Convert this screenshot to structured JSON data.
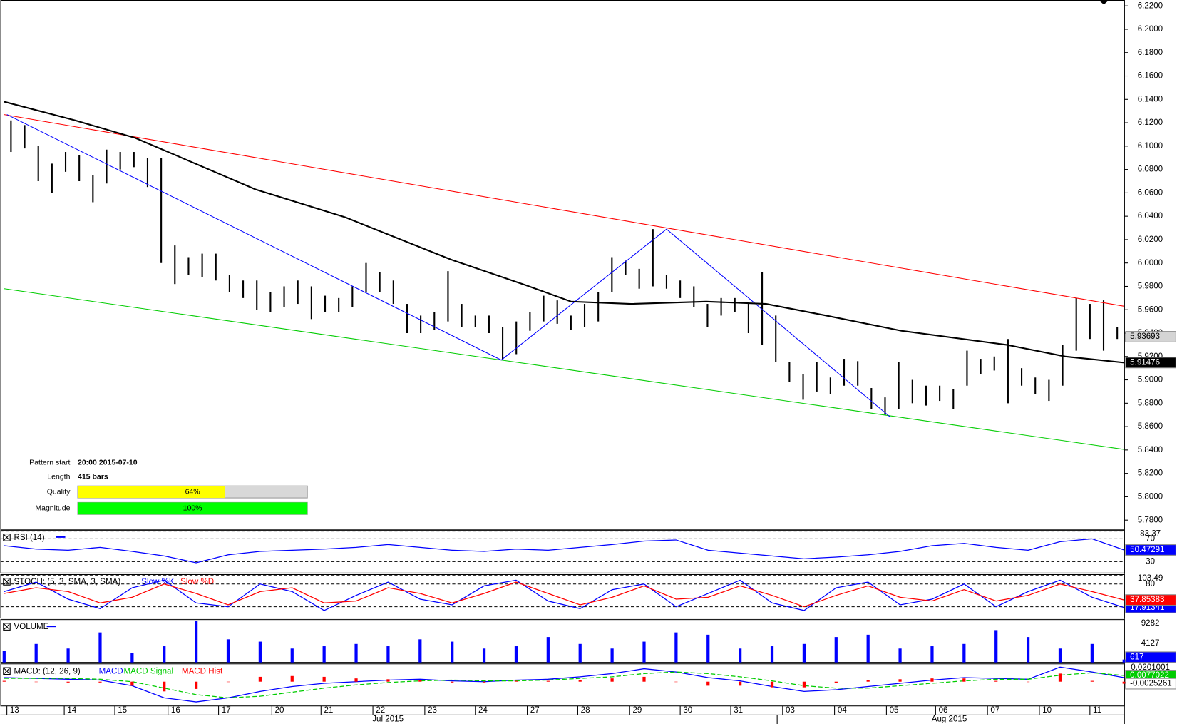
{
  "chart_data": {
    "type": "ohlc",
    "xlim": [
      0,
      82
    ],
    "ylim": [
      5.772,
      6.225
    ],
    "yticks": [
      {
        "value": 6.22,
        "label": "6.2200"
      },
      {
        "value": 6.2,
        "label": "6.2000"
      },
      {
        "value": 6.18,
        "label": "6.1800"
      },
      {
        "value": 6.16,
        "label": "6.1600"
      },
      {
        "value": 6.14,
        "label": "6.1400"
      },
      {
        "value": 6.12,
        "label": "6.1200"
      },
      {
        "value": 6.1,
        "label": "6.1000"
      },
      {
        "value": 6.08,
        "label": "6.0800"
      },
      {
        "value": 6.06,
        "label": "6.0600"
      },
      {
        "value": 6.04,
        "label": "6.0400"
      },
      {
        "value": 6.02,
        "label": "6.0200"
      },
      {
        "value": 6.0,
        "label": "6.0000"
      },
      {
        "value": 5.98,
        "label": "5.9800"
      },
      {
        "value": 5.96,
        "label": "5.9600"
      },
      {
        "value": 5.94,
        "label": "5.9400"
      },
      {
        "value": 5.92,
        "label": "5.9200"
      },
      {
        "value": 5.9,
        "label": "5.9000"
      },
      {
        "value": 5.88,
        "label": "5.8800"
      },
      {
        "value": 5.86,
        "label": "5.8600"
      },
      {
        "value": 5.84,
        "label": "5.8400"
      },
      {
        "value": 5.82,
        "label": "5.8200"
      },
      {
        "value": 5.8,
        "label": "5.8000"
      },
      {
        "value": 5.78,
        "label": "5.7800"
      }
    ],
    "xticks": [
      {
        "value": 0.2,
        "label": "13"
      },
      {
        "value": 4.4,
        "label": "14"
      },
      {
        "value": 8.1,
        "label": "15"
      },
      {
        "value": 12.0,
        "label": "16"
      },
      {
        "value": 15.7,
        "label": "17"
      },
      {
        "value": 19.6,
        "label": "20"
      },
      {
        "value": 23.2,
        "label": "21"
      },
      {
        "value": 27.0,
        "label": "22"
      },
      {
        "value": 30.8,
        "label": "23"
      },
      {
        "value": 34.5,
        "label": "24"
      },
      {
        "value": 38.3,
        "label": "27"
      },
      {
        "value": 42.0,
        "label": "28"
      },
      {
        "value": 45.8,
        "label": "29"
      },
      {
        "value": 49.5,
        "label": "30"
      },
      {
        "value": 53.2,
        "label": "31"
      },
      {
        "value": 57.0,
        "label": "03"
      },
      {
        "value": 60.8,
        "label": "04"
      },
      {
        "value": 64.6,
        "label": "05"
      },
      {
        "value": 68.2,
        "label": "06"
      },
      {
        "value": 72.0,
        "label": "07"
      },
      {
        "value": 75.8,
        "label": "10"
      },
      {
        "value": 79.5,
        "label": "11"
      }
    ],
    "months": [
      {
        "value": 28.1,
        "label": "Jul 2015"
      },
      {
        "value": 56.6,
        "label": ""
      },
      {
        "value": 69.2,
        "label": "Aug 2015"
      }
    ],
    "color": "#000000",
    "high": [
      6.122,
      6.118,
      6.1,
      6.085,
      6.095,
      6.092,
      6.075,
      6.097,
      6.095,
      6.095,
      6.09,
      6.09,
      6.015,
      6.005,
      6.008,
      6.008,
      5.99,
      5.985,
      5.985,
      5.975,
      5.98,
      5.985,
      5.98,
      5.972,
      5.97,
      5.98,
      6.0,
      5.992,
      5.985,
      5.965,
      5.955,
      5.958,
      5.993,
      5.965,
      5.955,
      5.955,
      5.945,
      5.95,
      5.958,
      5.972,
      5.968,
      5.955,
      5.965,
      5.975,
      6.005,
      6.002,
      5.995,
      6.029,
      5.99,
      5.985,
      5.98,
      5.965,
      5.97,
      5.97,
      5.965,
      5.992,
      5.955,
      5.915,
      5.905,
      5.915,
      5.902,
      5.918,
      5.916,
      5.893,
      5.885,
      5.915,
      5.9,
      5.895,
      5.895,
      5.892,
      5.925,
      5.918,
      5.92,
      5.935,
      5.91,
      5.902,
      5.9,
      5.93,
      5.97,
      5.965,
      5.968,
      5.945
    ],
    "low": [
      6.095,
      6.098,
      6.07,
      6.06,
      6.078,
      6.07,
      6.052,
      6.068,
      6.08,
      6.082,
      6.065,
      6.0,
      5.982,
      5.99,
      5.988,
      5.985,
      5.975,
      5.97,
      5.96,
      5.958,
      5.962,
      5.965,
      5.952,
      5.958,
      5.958,
      5.962,
      5.975,
      5.975,
      5.965,
      5.94,
      5.94,
      5.943,
      5.95,
      5.945,
      5.945,
      5.94,
      5.917,
      5.922,
      5.942,
      5.95,
      5.948,
      5.943,
      5.945,
      5.95,
      5.975,
      5.99,
      5.978,
      5.98,
      5.978,
      5.97,
      5.962,
      5.945,
      5.955,
      5.958,
      5.94,
      5.93,
      5.915,
      5.898,
      5.883,
      5.89,
      5.888,
      5.895,
      5.895,
      5.875,
      5.87,
      5.875,
      5.88,
      5.878,
      5.882,
      5.875,
      5.895,
      5.905,
      5.908,
      5.88,
      5.895,
      5.888,
      5.882,
      5.895,
      5.925,
      5.935,
      5.925,
      5.935
    ],
    "last_price": 5.93693,
    "overlays": [
      {
        "color": "#ff0000",
        "x": [
          0,
          82
        ],
        "values": [
          6.127,
          5.963
        ]
      },
      {
        "color": "#00cc00",
        "x": [
          0,
          82
        ],
        "values": [
          5.978,
          5.8405
        ]
      },
      {
        "color": "#0000ff",
        "x": [
          0.2,
          36.4,
          48.5,
          64.9
        ],
        "values": [
          6.127,
          5.917,
          6.029,
          5.868
        ]
      },
      {
        "color": "#000000",
        "width": 2,
        "x": [
          0,
          5.2,
          9.6,
          18.4,
          25,
          32.7,
          38.2,
          41.5,
          45.9,
          51.4,
          55.8,
          60.2,
          65.7,
          73.4,
          77.7,
          82
        ],
        "values": [
          6.138,
          6.122,
          6.107,
          6.063,
          6.039,
          6.003,
          5.981,
          5.967,
          5.965,
          5.967,
          5.965,
          5.955,
          5.942,
          5.93,
          5.92,
          5.91476
        ],
        "box": true
      }
    ],
    "pattern": {
      "rows": [
        [
          "Pattern start",
          "20:00 2015-07-10"
        ],
        [
          "Length",
          "415 bars"
        ]
      ],
      "xlim": [
        0,
        100
      ],
      "bars": [
        {
          "name": "Quality",
          "value": 64,
          "label": "64%",
          "color": "#ffff00"
        },
        {
          "name": "Magnitude",
          "value": 100,
          "label": "100%",
          "color": "#00ff00"
        }
      ]
    },
    "panels": [
      {
        "type": "line",
        "title": "RSI (14)",
        "ylim": [
          10,
          85
        ],
        "yticks": [
          83.37,
          70,
          30
        ],
        "series": [
          {
            "color": "#0000ff",
            "values": [
              58,
              52,
              50,
              55,
              48,
              40,
              28,
              42,
              48,
              50,
              52,
              55,
              60,
              55,
              50,
              48,
              52,
              50,
              55,
              60,
              66,
              68,
              50,
              45,
              40,
              35,
              38,
              42,
              48,
              58,
              62,
              55,
              50,
              65,
              70,
              50.47291
            ]
          }
        ]
      },
      {
        "type": "line",
        "title": "STOCH: (5, 3, SMA, 3, SMA)",
        "ylim": [
          -10,
          105
        ],
        "yticks": [
          103.49,
          80,
          20
        ],
        "series": [
          {
            "name": "Slow %K",
            "color": "#0000ff",
            "values": [
              60,
              85,
              40,
              15,
              70,
              90,
              30,
              20,
              80,
              60,
              10,
              50,
              85,
              40,
              25,
              75,
              90,
              35,
              15,
              65,
              80,
              20,
              55,
              90,
              30,
              10,
              70,
              85,
              25,
              40,
              80,
              20,
              60,
              90,
              45,
              17.91341
            ]
          },
          {
            "name": "Slow %D",
            "color": "#ff0000",
            "values": [
              55,
              70,
              60,
              30,
              45,
              80,
              55,
              25,
              60,
              70,
              30,
              35,
              70,
              55,
              30,
              55,
              85,
              55,
              25,
              45,
              75,
              40,
              45,
              75,
              50,
              20,
              50,
              75,
              45,
              35,
              65,
              35,
              50,
              80,
              60,
              37.85383
            ]
          }
        ]
      },
      {
        "type": "bar",
        "title": "VOLUME",
        "ylim": [
          0,
          9282
        ],
        "yticks": [
          9282,
          4127
        ],
        "series": [
          {
            "color": "#0000ff",
            "values": [
              2500,
              4000,
              3000,
              6500,
              2000,
              3500,
              9000,
              5000,
              4500,
              3000,
              3500,
              4000,
              3500,
              5000,
              4500,
              3000,
              3500,
              5500,
              4000,
              3000,
              4500,
              6500,
              6000,
              3000,
              3500,
              4000,
              5500,
              6000,
              3000,
              3500,
              4000,
              7000,
              5500,
              3000,
              4000,
              617
            ]
          }
        ]
      },
      {
        "type": "macd",
        "title": "MACD: (12, 26, 9)",
        "ylim": [
          -0.03,
          0.022
        ],
        "yticks": [
          0.0201001
        ],
        "series": [
          {
            "name": "MACD",
            "color": "#0000ff",
            "values": [
              0.005,
              0.004,
              0.003,
              0.002,
              -0.005,
              -0.02,
              -0.025,
              -0.02,
              -0.012,
              -0.006,
              -0.002,
              0,
              0.002,
              0.003,
              0.001,
              0,
              0.002,
              0.003,
              0.006,
              0.01,
              0.016,
              0.012,
              0.005,
              0.001,
              -0.006,
              -0.012,
              -0.01,
              -0.006,
              -0.002,
              0.002,
              0.005,
              0.004,
              0.003,
              0.018,
              0.012,
              0.005
            ],
            "nobox": true
          },
          {
            "name": "MACD Signal",
            "color": "#00cc00",
            "dashed": true,
            "values": [
              0.004,
              0.004,
              0.004,
              0.003,
              0,
              -0.008,
              -0.016,
              -0.02,
              -0.018,
              -0.013,
              -0.008,
              -0.004,
              -0.001,
              0.001,
              0.002,
              0.001,
              0.001,
              0.002,
              0.004,
              0.006,
              0.01,
              0.012,
              0.01,
              0.006,
              0.001,
              -0.005,
              -0.008,
              -0.008,
              -0.005,
              -0.002,
              0.001,
              0.003,
              0.003,
              0.008,
              0.011,
              0.0077022
            ]
          },
          {
            "name": "MACD Hist",
            "color": "#ff0000",
            "hist": true,
            "values": [
              0.001,
              0,
              -0.001,
              -0.001,
              -0.005,
              -0.012,
              -0.009,
              0,
              0.006,
              0.007,
              0.006,
              0.004,
              0.003,
              0.002,
              -0.001,
              -0.001,
              0.001,
              0.001,
              0.002,
              0.004,
              0.006,
              0,
              -0.005,
              -0.005,
              -0.007,
              -0.007,
              -0.002,
              0.002,
              0.003,
              0.004,
              0.004,
              0.001,
              0,
              0.01,
              0.001,
              -0.0025261
            ]
          }
        ]
      }
    ]
  }
}
